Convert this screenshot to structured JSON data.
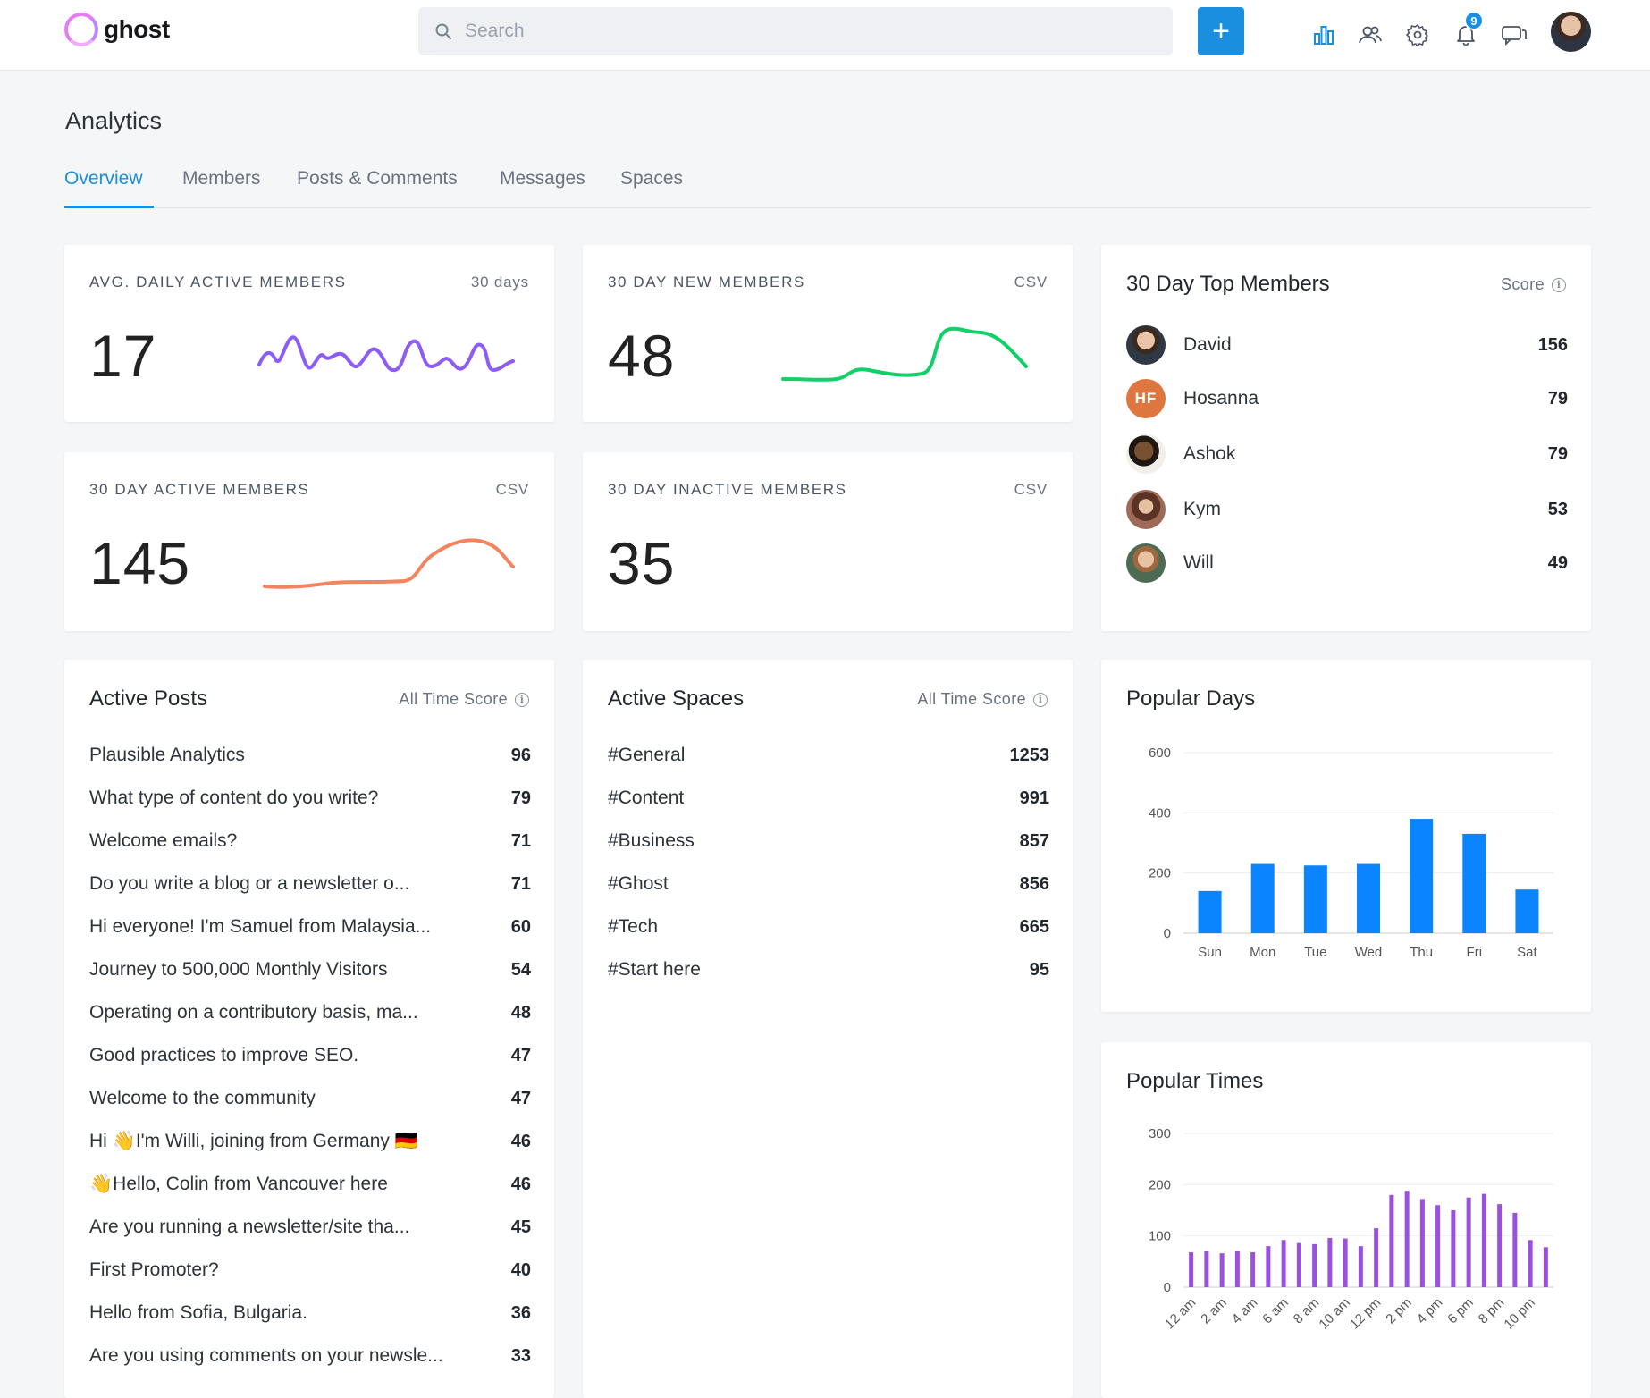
{
  "app": {
    "logo_text": "ghost",
    "search_placeholder": "Search",
    "add_label": "+",
    "notification_count": "9"
  },
  "icons": {
    "add": "plus-icon",
    "search": "search-icon",
    "analytics": "bar-chart-icon",
    "members": "users-icon",
    "settings": "gear-icon",
    "notifications": "bell-icon",
    "messages": "chat-icon",
    "info": "info-icon"
  },
  "colors": {
    "accent": "#1a8fe0",
    "purple": "#8b5cf6",
    "green": "#10d06a",
    "orange": "#f4845f",
    "bar_blue": "#0a84ff",
    "bar_purple": "#9b51e0"
  },
  "page": {
    "title": "Analytics"
  },
  "tabs": [
    {
      "label": "Overview",
      "active": true
    },
    {
      "label": "Members",
      "active": false
    },
    {
      "label": "Posts & Comments",
      "active": false
    },
    {
      "label": "Messages",
      "active": false
    },
    {
      "label": "Spaces",
      "active": false
    }
  ],
  "stats": {
    "avg_daily": {
      "label": "AVG. DAILY ACTIVE MEMBERS",
      "side": "30 days",
      "value": "17"
    },
    "new_members": {
      "label": "30 DAY NEW MEMBERS",
      "side": "CSV",
      "value": "48"
    },
    "active_members": {
      "label": "30 DAY ACTIVE MEMBERS",
      "side": "CSV",
      "value": "145"
    },
    "inactive_members": {
      "label": "30 DAY INACTIVE MEMBERS",
      "side": "CSV",
      "value": "35"
    }
  },
  "top_members": {
    "title": "30 Day Top Members",
    "side": "Score",
    "items": [
      {
        "name": "David",
        "score": "156",
        "initials": ""
      },
      {
        "name": "Hosanna",
        "score": "79",
        "initials": "HF"
      },
      {
        "name": "Ashok",
        "score": "79",
        "initials": ""
      },
      {
        "name": "Kym",
        "score": "53",
        "initials": ""
      },
      {
        "name": "Will",
        "score": "49",
        "initials": ""
      }
    ]
  },
  "active_posts": {
    "title": "Active Posts",
    "side": "All Time Score",
    "items": [
      {
        "title": "Plausible Analytics",
        "score": "96"
      },
      {
        "title": "What type of content do you write?",
        "score": "79"
      },
      {
        "title": "Welcome emails?",
        "score": "71"
      },
      {
        "title": "Do you write a blog or a newsletter o...",
        "score": "71"
      },
      {
        "title": "Hi everyone! I'm Samuel from Malaysia...",
        "score": "60"
      },
      {
        "title": "Journey to 500,000 Monthly Visitors",
        "score": "54"
      },
      {
        "title": "Operating on a contributory basis, ma...",
        "score": "48"
      },
      {
        "title": "Good practices to improve SEO.",
        "score": "47"
      },
      {
        "title": "Welcome to the community",
        "score": "47"
      },
      {
        "title": "Hi 👋I'm Willi, joining from Germany 🇩🇪",
        "score": "46"
      },
      {
        "title": "👋Hello, Colin from Vancouver here",
        "score": "46"
      },
      {
        "title": "Are you running a newsletter/site tha...",
        "score": "45"
      },
      {
        "title": "First Promoter?",
        "score": "40"
      },
      {
        "title": "Hello from Sofia, Bulgaria.",
        "score": "36"
      },
      {
        "title": "Are you using comments on your newsle...",
        "score": "33"
      }
    ]
  },
  "active_spaces": {
    "title": "Active Spaces",
    "side": "All Time Score",
    "items": [
      {
        "title": "#General",
        "score": "1253"
      },
      {
        "title": "#Content",
        "score": "991"
      },
      {
        "title": "#Business",
        "score": "857"
      },
      {
        "title": "#Ghost",
        "score": "856"
      },
      {
        "title": "#Tech",
        "score": "665"
      },
      {
        "title": "#Start here",
        "score": "95"
      }
    ]
  },
  "chart_data": [
    {
      "type": "bar",
      "title": "Popular Days",
      "categories": [
        "Sun",
        "Mon",
        "Tue",
        "Wed",
        "Thu",
        "Fri",
        "Sat"
      ],
      "values": [
        140,
        230,
        225,
        230,
        380,
        330,
        145
      ],
      "yticks": [
        "0",
        "200",
        "400",
        "600"
      ],
      "ylim": [
        0,
        600
      ],
      "grid": true
    },
    {
      "type": "bar",
      "title": "Popular Times",
      "categories": [
        "12 am",
        "1 am",
        "2 am",
        "3 am",
        "4 am",
        "5 am",
        "6 am",
        "7 am",
        "8 am",
        "9 am",
        "10 am",
        "11 am",
        "12 pm",
        "1 pm",
        "2 pm",
        "3 pm",
        "4 pm",
        "5 pm",
        "6 pm",
        "7 pm",
        "8 pm",
        "9 pm",
        "10 pm",
        "11 pm"
      ],
      "values": [
        68,
        70,
        66,
        70,
        68,
        80,
        92,
        86,
        84,
        96,
        95,
        80,
        115,
        180,
        188,
        172,
        160,
        150,
        175,
        182,
        162,
        145,
        92,
        78
      ],
      "xticks": [
        "12 am",
        "2 am",
        "4 am",
        "6 am",
        "8 am",
        "10 am",
        "12 pm",
        "2 pm",
        "4 pm",
        "6 pm",
        "8 pm",
        "10 pm"
      ],
      "yticks": [
        "0",
        "100",
        "200",
        "300"
      ],
      "ylim": [
        0,
        300
      ],
      "grid": true
    }
  ]
}
